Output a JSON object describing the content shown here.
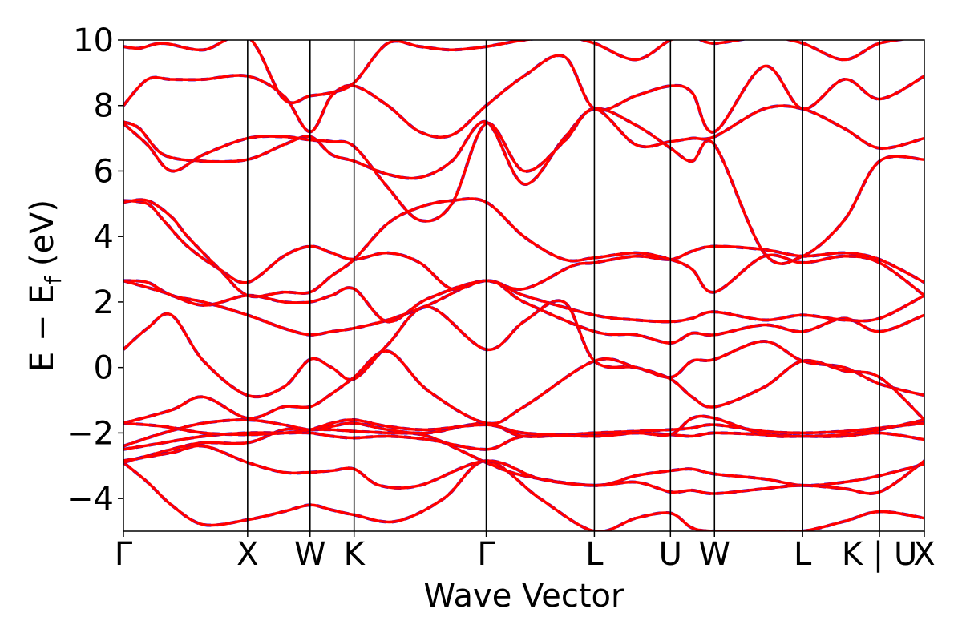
{
  "chart_data": {
    "type": "line",
    "title": "",
    "xlabel": "Wave Vector",
    "ylabel": {
      "prefix": "E − E",
      "subscript": "f",
      "suffix": " (eV)"
    },
    "ylim": [
      -5,
      10
    ],
    "yticks": [
      -4,
      -2,
      0,
      2,
      4,
      6,
      8,
      10
    ],
    "ytick_labels": [
      "−4",
      "−2",
      "0",
      "2",
      "4",
      "6",
      "8",
      "10"
    ],
    "kpoint_positions": [
      0,
      0.155,
      0.233,
      0.288,
      0.453,
      0.588,
      0.683,
      0.738,
      0.848,
      0.944,
      1.0
    ],
    "kpoint_labels": [
      "Γ",
      "X",
      "W",
      "K",
      "Γ",
      "L",
      "U",
      "W",
      "L",
      "K | U",
      "X"
    ],
    "grid": false,
    "series_style": [
      {
        "color": "#0000ff",
        "dash": "dashed"
      },
      {
        "color": "#ff0000",
        "dash": "solid"
      }
    ],
    "bands": [
      {
        "x": [
          0,
          0.03,
          0.06,
          0.1,
          0.155,
          0.2,
          0.233,
          0.26,
          0.288,
          0.34,
          0.4,
          0.453,
          0.52,
          0.588,
          0.64,
          0.683,
          0.71,
          0.738,
          0.8,
          0.848,
          0.9,
          0.944,
          1.0
        ],
        "y": [
          -2.9,
          -3.5,
          -4.2,
          -4.8,
          -4.65,
          -4.4,
          -4.2,
          -4.35,
          -4.5,
          -4.7,
          -4.0,
          -2.85,
          -4.0,
          -5.0,
          -4.6,
          -4.45,
          -4.9,
          -5.0,
          -5.0,
          -5.0,
          -4.7,
          -4.4,
          -4.6
        ]
      },
      {
        "x": [
          0,
          0.06,
          0.1,
          0.155,
          0.2,
          0.233,
          0.26,
          0.288,
          0.33,
          0.38,
          0.453,
          0.5,
          0.588,
          0.64,
          0.683,
          0.71,
          0.738,
          0.8,
          0.848,
          0.9,
          0.944,
          1.0
        ],
        "y": [
          -2.9,
          -2.5,
          -2.3,
          -2.3,
          -1.9,
          -1.9,
          -1.9,
          -1.95,
          -2.0,
          -2.1,
          -2.9,
          -3.3,
          -3.6,
          -3.3,
          -3.15,
          -3.1,
          -3.25,
          -3.4,
          -3.6,
          -3.5,
          -3.3,
          -2.95
        ]
      },
      {
        "x": [
          0,
          0.06,
          0.1,
          0.155,
          0.2,
          0.233,
          0.26,
          0.288,
          0.32,
          0.37,
          0.453,
          0.52,
          0.588,
          0.64,
          0.683,
          0.71,
          0.738,
          0.8,
          0.848,
          0.9,
          0.944,
          1.0
        ],
        "y": [
          -2.85,
          -2.6,
          -2.4,
          -2.9,
          -3.2,
          -3.2,
          -3.15,
          -3.1,
          -3.6,
          -3.6,
          -2.85,
          -3.4,
          -3.6,
          -3.5,
          -3.8,
          -3.75,
          -3.85,
          -3.7,
          -3.6,
          -3.7,
          -3.8,
          -2.85
        ]
      },
      {
        "x": [
          0,
          0.05,
          0.1,
          0.155,
          0.2,
          0.233,
          0.26,
          0.288,
          0.33,
          0.38,
          0.453,
          0.5,
          0.588,
          0.64,
          0.683,
          0.71,
          0.738,
          0.8,
          0.848,
          0.9,
          0.944,
          1.0
        ],
        "y": [
          -2.5,
          -2.3,
          -2.1,
          -2.0,
          -2.0,
          -2.0,
          -2.1,
          -2.15,
          -2.1,
          -2.2,
          -2.5,
          -2.1,
          -2.05,
          -2.0,
          -2.05,
          -2.1,
          -2.0,
          -2.05,
          -2.1,
          -2.1,
          -2.0,
          -2.2
        ]
      },
      {
        "x": [
          0,
          0.05,
          0.1,
          0.155,
          0.2,
          0.233,
          0.26,
          0.288,
          0.33,
          0.38,
          0.453,
          0.5,
          0.588,
          0.64,
          0.683,
          0.71,
          0.738,
          0.8,
          0.848,
          0.9,
          0.944,
          1.0
        ],
        "y": [
          -2.4,
          -2.0,
          -1.7,
          -1.6,
          -1.75,
          -1.9,
          -1.8,
          -1.7,
          -1.9,
          -2.0,
          -1.7,
          -2.1,
          -2.0,
          -1.95,
          -1.9,
          -1.85,
          -1.75,
          -1.95,
          -2.0,
          -1.95,
          -1.85,
          -1.7
        ]
      },
      {
        "x": [
          0,
          0.05,
          0.1,
          0.155,
          0.2,
          0.233,
          0.26,
          0.288,
          0.33,
          0.38,
          0.453,
          0.5,
          0.588,
          0.64,
          0.683,
          0.71,
          0.738,
          0.8,
          0.848,
          0.9,
          0.944,
          1.0
        ],
        "y": [
          -1.7,
          -1.8,
          -2.0,
          -2.05,
          -2.0,
          -1.9,
          -1.7,
          -1.6,
          -1.8,
          -1.9,
          -1.75,
          -2.0,
          -2.1,
          -2.0,
          -2.05,
          -1.55,
          -1.55,
          -2.05,
          -2.1,
          -2.05,
          -1.9,
          -1.6
        ]
      },
      {
        "x": [
          0,
          0.03,
          0.06,
          0.1,
          0.155,
          0.2,
          0.233,
          0.26,
          0.288,
          0.33,
          0.38,
          0.453,
          0.5,
          0.55,
          0.588,
          0.64,
          0.683,
          0.71,
          0.738,
          0.8,
          0.848,
          0.9,
          0.944,
          1.0
        ],
        "y": [
          0.55,
          1.2,
          1.6,
          0.2,
          -0.85,
          -0.6,
          0.25,
          0.0,
          -0.35,
          0.7,
          1.85,
          0.55,
          1.4,
          2.0,
          0.2,
          0.0,
          -0.3,
          0.2,
          0.25,
          0.8,
          0.2,
          0.0,
          -0.5,
          -0.85
        ]
      },
      {
        "x": [
          0,
          0.06,
          0.1,
          0.155,
          0.2,
          0.233,
          0.26,
          0.288,
          0.33,
          0.38,
          0.453,
          0.5,
          0.588,
          0.64,
          0.683,
          0.71,
          0.738,
          0.8,
          0.848,
          0.9,
          0.944,
          1.0
        ],
        "y": [
          -1.7,
          -1.3,
          -0.9,
          -1.55,
          -1.2,
          -1.2,
          -0.8,
          -0.3,
          0.5,
          -0.7,
          -1.7,
          -1.2,
          0.2,
          0.0,
          -0.35,
          -0.9,
          -1.2,
          -0.6,
          0.2,
          -0.1,
          -0.3,
          -1.6
        ]
      },
      {
        "x": [
          0,
          0.03,
          0.06,
          0.1,
          0.155,
          0.2,
          0.233,
          0.26,
          0.288,
          0.33,
          0.38,
          0.453,
          0.5,
          0.588,
          0.64,
          0.683,
          0.71,
          0.738,
          0.8,
          0.848,
          0.9,
          0.944,
          1.0
        ],
        "y": [
          2.65,
          2.6,
          2.2,
          2.0,
          1.6,
          1.2,
          1.0,
          1.1,
          1.2,
          1.45,
          1.9,
          2.65,
          2.0,
          1.1,
          1.0,
          0.75,
          1.05,
          1.0,
          1.3,
          1.1,
          1.5,
          1.1,
          1.6
        ]
      },
      {
        "x": [
          0,
          0.05,
          0.1,
          0.155,
          0.2,
          0.233,
          0.26,
          0.288,
          0.33,
          0.38,
          0.453,
          0.5,
          0.588,
          0.64,
          0.683,
          0.71,
          0.738,
          0.8,
          0.848,
          0.9,
          0.944,
          1.0
        ],
        "y": [
          2.65,
          2.3,
          1.9,
          2.2,
          2.0,
          2.0,
          2.2,
          2.4,
          1.4,
          2.1,
          2.65,
          2.2,
          1.6,
          1.45,
          1.4,
          1.5,
          1.7,
          1.45,
          1.6,
          1.45,
          1.5,
          2.2
        ]
      },
      {
        "x": [
          0,
          0.03,
          0.05,
          0.08,
          0.12,
          0.155,
          0.2,
          0.233,
          0.26,
          0.288,
          0.33,
          0.37,
          0.41,
          0.453,
          0.5,
          0.56,
          0.588,
          0.64,
          0.683,
          0.71,
          0.738,
          0.8,
          0.848,
          0.9,
          0.944,
          1.0
        ],
        "y": [
          5.1,
          5.0,
          4.5,
          3.7,
          3.0,
          2.6,
          3.4,
          3.7,
          3.5,
          3.3,
          3.5,
          3.2,
          2.4,
          2.65,
          2.4,
          3.1,
          3.2,
          3.4,
          3.3,
          3.55,
          3.7,
          3.6,
          3.4,
          3.5,
          3.3,
          2.6
        ]
      },
      {
        "x": [
          0,
          0.03,
          0.06,
          0.08,
          0.12,
          0.155,
          0.2,
          0.233,
          0.26,
          0.288,
          0.33,
          0.37,
          0.41,
          0.453,
          0.5,
          0.55,
          0.588,
          0.64,
          0.683,
          0.71,
          0.738,
          0.8,
          0.848,
          0.9,
          0.944,
          1.0
        ],
        "y": [
          5.05,
          5.1,
          4.6,
          4.0,
          3.0,
          2.2,
          2.3,
          2.3,
          2.8,
          3.3,
          4.4,
          4.9,
          5.1,
          5.05,
          4.0,
          3.3,
          3.35,
          3.5,
          3.3,
          3.0,
          2.3,
          3.4,
          3.2,
          3.4,
          3.2,
          2.2
        ]
      },
      {
        "x": [
          0,
          0.02,
          0.05,
          0.1,
          0.155,
          0.2,
          0.233,
          0.26,
          0.288,
          0.33,
          0.37,
          0.41,
          0.453,
          0.5,
          0.55,
          0.588,
          0.64,
          0.683,
          0.71,
          0.738,
          0.8,
          0.848,
          0.9,
          0.944,
          1.0
        ],
        "y": [
          7.5,
          7.3,
          6.5,
          6.3,
          6.35,
          6.8,
          7.05,
          6.5,
          6.3,
          5.9,
          5.8,
          6.3,
          7.5,
          5.6,
          7.0,
          7.9,
          7.4,
          6.7,
          6.3,
          6.8,
          3.5,
          3.4,
          4.5,
          6.3,
          6.35
        ]
      },
      {
        "x": [
          0,
          0.03,
          0.06,
          0.1,
          0.155,
          0.2,
          0.233,
          0.26,
          0.288,
          0.33,
          0.37,
          0.41,
          0.453,
          0.5,
          0.55,
          0.588,
          0.64,
          0.683,
          0.71,
          0.738,
          0.8,
          0.848,
          0.9,
          0.944,
          1.0
        ],
        "y": [
          7.45,
          6.8,
          6.0,
          6.5,
          7.0,
          7.05,
          6.95,
          6.9,
          6.75,
          5.5,
          4.5,
          5.0,
          7.45,
          6.0,
          6.9,
          7.9,
          6.8,
          6.9,
          7.0,
          7.05,
          7.9,
          7.9,
          7.3,
          6.7,
          7.0
        ]
      },
      {
        "x": [
          0,
          0.03,
          0.06,
          0.1,
          0.155,
          0.2,
          0.233,
          0.26,
          0.288,
          0.33,
          0.37,
          0.41,
          0.453,
          0.5,
          0.55,
          0.588,
          0.64,
          0.683,
          0.71,
          0.738,
          0.8,
          0.848,
          0.9,
          0.944,
          1.0
        ],
        "y": [
          8.0,
          8.8,
          8.8,
          8.8,
          8.9,
          8.3,
          7.2,
          8.3,
          8.6,
          8.0,
          7.2,
          7.1,
          8.0,
          8.9,
          9.5,
          7.9,
          8.3,
          8.6,
          8.4,
          7.2,
          9.2,
          7.9,
          8.8,
          8.2,
          8.9
        ]
      },
      {
        "x": [
          0,
          0.02,
          0.05,
          0.1,
          0.155,
          0.2,
          0.233,
          0.26,
          0.288,
          0.33,
          0.37,
          0.41,
          0.453,
          0.5,
          0.55,
          0.588,
          0.64,
          0.683,
          0.71,
          0.738,
          0.8,
          0.848,
          0.9,
          0.944,
          1.0
        ],
        "y": [
          9.8,
          9.75,
          9.9,
          9.7,
          10.1,
          8.2,
          8.3,
          8.4,
          8.7,
          9.9,
          9.8,
          9.7,
          9.8,
          10.0,
          10.1,
          9.9,
          9.4,
          10.0,
          10.1,
          9.9,
          10.1,
          9.9,
          9.4,
          9.9,
          10.1
        ]
      }
    ]
  }
}
